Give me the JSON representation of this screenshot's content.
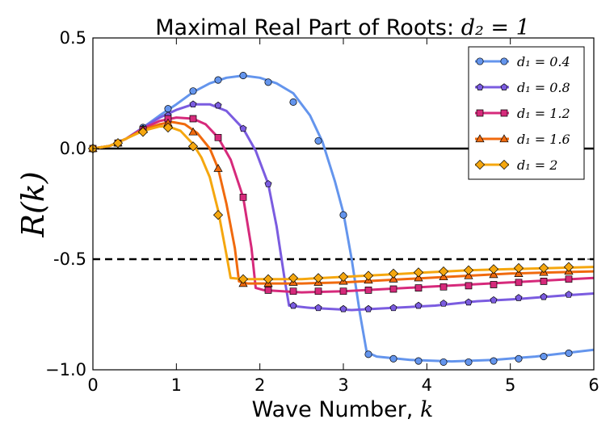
{
  "chart_data": {
    "type": "line",
    "title": "Maximal Real Part of Roots: ",
    "title_math": "d₂ = 1",
    "xlabel": "Wave Number, ",
    "xlabel_math": "k",
    "ylabel": "R(k)",
    "xlim": [
      0,
      6
    ],
    "ylim": [
      -1.0,
      0.5
    ],
    "x_ticks": [
      0,
      1,
      2,
      3,
      4,
      5,
      6
    ],
    "x_tick_labels": [
      "0",
      "1",
      "2",
      "3",
      "4",
      "5",
      "6"
    ],
    "y_ticks": [
      0.5,
      0.0,
      -0.5,
      -1.0
    ],
    "y_tick_labels": [
      "0.5",
      "0.0",
      "-0.5",
      "−1.0"
    ],
    "grid": false,
    "legend_position": "top-right",
    "reference_lines": [
      {
        "y": 0.0,
        "style": "solid",
        "color": "#000000"
      },
      {
        "y": -0.5,
        "style": "dashed",
        "color": "#000000"
      }
    ],
    "series": [
      {
        "name": "d₁ = 0.4",
        "color": "#6495ED",
        "marker": "circle",
        "curve": [
          [
            0,
            0
          ],
          [
            0.2,
            0.012
          ],
          [
            0.4,
            0.045
          ],
          [
            0.6,
            0.095
          ],
          [
            0.8,
            0.15
          ],
          [
            1.0,
            0.2
          ],
          [
            1.2,
            0.255
          ],
          [
            1.4,
            0.295
          ],
          [
            1.6,
            0.32
          ],
          [
            1.8,
            0.33
          ],
          [
            2.0,
            0.32
          ],
          [
            2.2,
            0.295
          ],
          [
            2.4,
            0.25
          ],
          [
            2.6,
            0.15
          ],
          [
            2.75,
            0.03
          ],
          [
            2.9,
            -0.15
          ],
          [
            3.0,
            -0.29
          ],
          [
            3.1,
            -0.5
          ],
          [
            3.2,
            -0.75
          ],
          [
            3.28,
            -0.92
          ],
          [
            3.4,
            -0.94
          ],
          [
            3.8,
            -0.955
          ],
          [
            4.3,
            -0.962
          ],
          [
            4.8,
            -0.955
          ],
          [
            5.3,
            -0.94
          ],
          [
            6.0,
            -0.91
          ]
        ],
        "markers": [
          [
            0,
            0
          ],
          [
            0.3,
            0.025
          ],
          [
            0.6,
            0.095
          ],
          [
            0.9,
            0.18
          ],
          [
            1.2,
            0.26
          ],
          [
            1.5,
            0.31
          ],
          [
            1.8,
            0.33
          ],
          [
            2.1,
            0.3
          ],
          [
            2.4,
            0.21
          ],
          [
            2.7,
            0.035
          ],
          [
            3.0,
            -0.3
          ],
          [
            3.3,
            -0.93
          ],
          [
            3.6,
            -0.95
          ],
          [
            3.9,
            -0.96
          ],
          [
            4.2,
            -0.965
          ],
          [
            4.5,
            -0.965
          ],
          [
            4.8,
            -0.96
          ],
          [
            5.1,
            -0.95
          ],
          [
            5.4,
            -0.94
          ],
          [
            5.7,
            -0.925
          ]
        ]
      },
      {
        "name": "d₁ = 0.8",
        "color": "#7B5CE0",
        "marker": "pentagon",
        "curve": [
          [
            0,
            0
          ],
          [
            0.2,
            0.012
          ],
          [
            0.4,
            0.045
          ],
          [
            0.6,
            0.095
          ],
          [
            0.8,
            0.14
          ],
          [
            1.0,
            0.175
          ],
          [
            1.2,
            0.2
          ],
          [
            1.4,
            0.2
          ],
          [
            1.6,
            0.17
          ],
          [
            1.8,
            0.09
          ],
          [
            1.95,
            -0.01
          ],
          [
            2.1,
            -0.16
          ],
          [
            2.2,
            -0.35
          ],
          [
            2.3,
            -0.6
          ],
          [
            2.35,
            -0.71
          ],
          [
            2.6,
            -0.72
          ],
          [
            3.1,
            -0.73
          ],
          [
            3.6,
            -0.72
          ],
          [
            4.1,
            -0.71
          ],
          [
            4.6,
            -0.69
          ],
          [
            5.1,
            -0.68
          ],
          [
            5.6,
            -0.665
          ],
          [
            6.0,
            -0.655
          ]
        ],
        "markers": [
          [
            0,
            0
          ],
          [
            0.3,
            0.025
          ],
          [
            0.6,
            0.09
          ],
          [
            0.9,
            0.15
          ],
          [
            1.2,
            0.2
          ],
          [
            1.5,
            0.195
          ],
          [
            1.8,
            0.09
          ],
          [
            2.1,
            -0.16
          ],
          [
            2.4,
            -0.71
          ],
          [
            2.7,
            -0.72
          ],
          [
            3.0,
            -0.725
          ],
          [
            3.3,
            -0.725
          ],
          [
            3.6,
            -0.72
          ],
          [
            3.9,
            -0.71
          ],
          [
            4.2,
            -0.7
          ],
          [
            4.5,
            -0.695
          ],
          [
            4.8,
            -0.685
          ],
          [
            5.1,
            -0.675
          ],
          [
            5.4,
            -0.67
          ],
          [
            5.7,
            -0.66
          ]
        ]
      },
      {
        "name": "d₁ = 1.2",
        "color": "#D62A7B",
        "marker": "square",
        "curve": [
          [
            0,
            0
          ],
          [
            0.2,
            0.012
          ],
          [
            0.4,
            0.045
          ],
          [
            0.6,
            0.09
          ],
          [
            0.8,
            0.125
          ],
          [
            1.0,
            0.14
          ],
          [
            1.2,
            0.135
          ],
          [
            1.35,
            0.11
          ],
          [
            1.5,
            0.05
          ],
          [
            1.65,
            -0.05
          ],
          [
            1.8,
            -0.22
          ],
          [
            1.9,
            -0.45
          ],
          [
            1.95,
            -0.63
          ],
          [
            2.05,
            -0.64
          ],
          [
            2.5,
            -0.65
          ],
          [
            3.0,
            -0.645
          ],
          [
            3.5,
            -0.635
          ],
          [
            4.0,
            -0.625
          ],
          [
            4.5,
            -0.615
          ],
          [
            5.0,
            -0.605
          ],
          [
            5.5,
            -0.595
          ],
          [
            6.0,
            -0.585
          ]
        ],
        "markers": [
          [
            0,
            0
          ],
          [
            0.3,
            0.025
          ],
          [
            0.6,
            0.085
          ],
          [
            0.9,
            0.135
          ],
          [
            1.2,
            0.135
          ],
          [
            1.5,
            0.05
          ],
          [
            1.8,
            -0.22
          ],
          [
            2.1,
            -0.64
          ],
          [
            2.4,
            -0.645
          ],
          [
            2.7,
            -0.645
          ],
          [
            3.0,
            -0.645
          ],
          [
            3.3,
            -0.64
          ],
          [
            3.6,
            -0.635
          ],
          [
            3.9,
            -0.63
          ],
          [
            4.2,
            -0.625
          ],
          [
            4.5,
            -0.62
          ],
          [
            4.8,
            -0.615
          ],
          [
            5.1,
            -0.605
          ],
          [
            5.4,
            -0.6
          ],
          [
            5.7,
            -0.59
          ]
        ]
      },
      {
        "name": "d₁ = 1.6",
        "color": "#F06A0E",
        "marker": "triangle",
        "curve": [
          [
            0,
            0
          ],
          [
            0.2,
            0.012
          ],
          [
            0.4,
            0.045
          ],
          [
            0.6,
            0.085
          ],
          [
            0.8,
            0.11
          ],
          [
            0.95,
            0.12
          ],
          [
            1.1,
            0.11
          ],
          [
            1.25,
            0.07
          ],
          [
            1.4,
            0.0
          ],
          [
            1.5,
            -0.09
          ],
          [
            1.6,
            -0.25
          ],
          [
            1.7,
            -0.45
          ],
          [
            1.75,
            -0.6
          ],
          [
            1.85,
            -0.61
          ],
          [
            2.5,
            -0.61
          ],
          [
            3.0,
            -0.605
          ],
          [
            3.5,
            -0.595
          ],
          [
            4.0,
            -0.585
          ],
          [
            4.5,
            -0.575
          ],
          [
            5.0,
            -0.565
          ],
          [
            5.5,
            -0.56
          ],
          [
            6.0,
            -0.555
          ]
        ],
        "markers": [
          [
            0,
            0
          ],
          [
            0.3,
            0.025
          ],
          [
            0.6,
            0.085
          ],
          [
            0.9,
            0.115
          ],
          [
            1.2,
            0.075
          ],
          [
            1.5,
            -0.09
          ],
          [
            1.8,
            -0.61
          ],
          [
            2.1,
            -0.61
          ],
          [
            2.4,
            -0.605
          ],
          [
            2.7,
            -0.605
          ],
          [
            3.0,
            -0.6
          ],
          [
            3.3,
            -0.595
          ],
          [
            3.6,
            -0.59
          ],
          [
            3.9,
            -0.585
          ],
          [
            4.2,
            -0.58
          ],
          [
            4.5,
            -0.575
          ],
          [
            4.8,
            -0.57
          ],
          [
            5.1,
            -0.565
          ],
          [
            5.4,
            -0.56
          ],
          [
            5.7,
            -0.555
          ]
        ]
      },
      {
        "name": "d₁ = 2",
        "color": "#F5A70F",
        "marker": "diamond",
        "curve": [
          [
            0,
            0
          ],
          [
            0.2,
            0.012
          ],
          [
            0.4,
            0.045
          ],
          [
            0.6,
            0.08
          ],
          [
            0.8,
            0.1
          ],
          [
            0.9,
            0.1
          ],
          [
            1.05,
            0.08
          ],
          [
            1.2,
            0.02
          ],
          [
            1.3,
            -0.04
          ],
          [
            1.4,
            -0.13
          ],
          [
            1.5,
            -0.28
          ],
          [
            1.6,
            -0.48
          ],
          [
            1.65,
            -0.585
          ],
          [
            1.8,
            -0.59
          ],
          [
            2.5,
            -0.59
          ],
          [
            3.0,
            -0.58
          ],
          [
            3.5,
            -0.57
          ],
          [
            4.0,
            -0.56
          ],
          [
            4.5,
            -0.55
          ],
          [
            5.0,
            -0.545
          ],
          [
            5.5,
            -0.54
          ],
          [
            6.0,
            -0.535
          ]
        ],
        "markers": [
          [
            0,
            0
          ],
          [
            0.3,
            0.025
          ],
          [
            0.6,
            0.075
          ],
          [
            0.9,
            0.095
          ],
          [
            1.2,
            0.01
          ],
          [
            1.5,
            -0.3
          ],
          [
            1.8,
            -0.59
          ],
          [
            2.1,
            -0.59
          ],
          [
            2.4,
            -0.585
          ],
          [
            2.7,
            -0.585
          ],
          [
            3.0,
            -0.58
          ],
          [
            3.3,
            -0.575
          ],
          [
            3.6,
            -0.565
          ],
          [
            3.9,
            -0.56
          ],
          [
            4.2,
            -0.555
          ],
          [
            4.5,
            -0.55
          ],
          [
            4.8,
            -0.545
          ],
          [
            5.1,
            -0.54
          ],
          [
            5.4,
            -0.54
          ],
          [
            5.7,
            -0.535
          ]
        ]
      }
    ]
  }
}
